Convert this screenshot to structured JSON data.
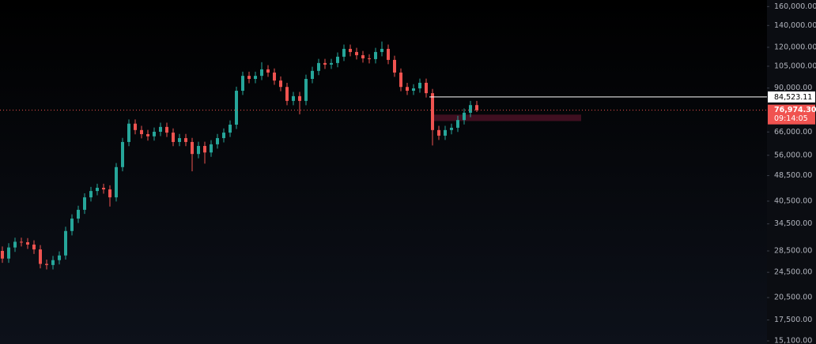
{
  "chart_data": {
    "type": "candlestick",
    "log_scale": true,
    "ylim": [
      14770,
      167600
    ],
    "yticks": [
      {
        "value": 160000,
        "label": "160,000.00"
      },
      {
        "value": 140000,
        "label": "140,000.00"
      },
      {
        "value": 120000,
        "label": "120,000.00"
      },
      {
        "value": 105000,
        "label": "105,000.00"
      },
      {
        "value": 90000,
        "label": "90,000.00"
      },
      {
        "value": 66000,
        "label": "66,000.00"
      },
      {
        "value": 56000,
        "label": "56,000.00"
      },
      {
        "value": 48500,
        "label": "48,500.00"
      },
      {
        "value": 40500,
        "label": "40,500.00"
      },
      {
        "value": 34500,
        "label": "34,500.00"
      },
      {
        "value": 28500,
        "label": "28,500.00"
      },
      {
        "value": 24500,
        "label": "24,500.00"
      },
      {
        "value": 20500,
        "label": "20,500.00"
      },
      {
        "value": 17500,
        "label": "17,500.00"
      },
      {
        "value": 15100,
        "label": "15,100.00"
      }
    ],
    "up_color": "#26a69a",
    "down_color": "#ef5350",
    "candles": [
      [
        28500,
        29400,
        26200,
        27000
      ],
      [
        27000,
        30100,
        26200,
        29200
      ],
      [
        29200,
        31300,
        28300,
        30400
      ],
      [
        30400,
        31300,
        29400,
        30300
      ],
      [
        30300,
        31200,
        28900,
        29800
      ],
      [
        29800,
        30700,
        27900,
        28800
      ],
      [
        28800,
        29700,
        25200,
        26000
      ],
      [
        26000,
        26800,
        25000,
        25800
      ],
      [
        25800,
        27500,
        25000,
        26700
      ],
      [
        26700,
        28400,
        25900,
        27600
      ],
      [
        27600,
        33800,
        26800,
        32800
      ],
      [
        32800,
        36900,
        31800,
        35800
      ],
      [
        35800,
        39200,
        34700,
        38100
      ],
      [
        38100,
        42800,
        37000,
        41600
      ],
      [
        41600,
        44800,
        40400,
        43500
      ],
      [
        43500,
        45800,
        42200,
        44500
      ],
      [
        44500,
        45800,
        42700,
        44000
      ],
      [
        44000,
        45300,
        39000,
        41600
      ],
      [
        41600,
        53000,
        40400,
        51500
      ],
      [
        51500,
        63300,
        50000,
        61500
      ],
      [
        61500,
        72100,
        59700,
        70000
      ],
      [
        70000,
        72100,
        64900,
        66900
      ],
      [
        66900,
        68900,
        63100,
        65000
      ],
      [
        65000,
        67000,
        62100,
        64000
      ],
      [
        64000,
        68100,
        62100,
        66100
      ],
      [
        66100,
        70500,
        64100,
        68400
      ],
      [
        68400,
        70500,
        63700,
        65700
      ],
      [
        65700,
        67700,
        59700,
        61500
      ],
      [
        61500,
        65100,
        59700,
        63200
      ],
      [
        63200,
        65100,
        59700,
        61500
      ],
      [
        61500,
        63300,
        50000,
        56500
      ],
      [
        56500,
        61600,
        54800,
        59800
      ],
      [
        59800,
        61600,
        52800,
        57100
      ],
      [
        57100,
        62300,
        55400,
        60500
      ],
      [
        60500,
        65100,
        58700,
        63200
      ],
      [
        63200,
        67700,
        61300,
        65700
      ],
      [
        65700,
        71600,
        63700,
        69500
      ],
      [
        69500,
        90900,
        67400,
        88300
      ],
      [
        88300,
        101000,
        85700,
        98100
      ],
      [
        98100,
        101000,
        93100,
        96000
      ],
      [
        96000,
        101000,
        93100,
        98100
      ],
      [
        98100,
        108000,
        95200,
        102700
      ],
      [
        102700,
        105800,
        97400,
        100400
      ],
      [
        100400,
        103400,
        92100,
        94900
      ],
      [
        94900,
        97700,
        88000,
        90700
      ],
      [
        90700,
        93400,
        79700,
        82200
      ],
      [
        82200,
        87600,
        79700,
        85000
      ],
      [
        85000,
        87600,
        74800,
        82200
      ],
      [
        82200,
        98900,
        79700,
        96000
      ],
      [
        96000,
        104600,
        93100,
        101600
      ],
      [
        101600,
        110600,
        98600,
        107400
      ],
      [
        107400,
        110600,
        103000,
        106200
      ],
      [
        106200,
        110600,
        103000,
        107400
      ],
      [
        107400,
        115700,
        104200,
        112300
      ],
      [
        112300,
        122300,
        108900,
        118700
      ],
      [
        118700,
        122300,
        112600,
        116100
      ],
      [
        116100,
        119600,
        110100,
        113500
      ],
      [
        113500,
        116900,
        107700,
        111000
      ],
      [
        111000,
        114300,
        107100,
        110400
      ],
      [
        110400,
        119600,
        107100,
        116100
      ],
      [
        116100,
        125000,
        112600,
        118700
      ],
      [
        118700,
        122300,
        106500,
        109800
      ],
      [
        109800,
        113100,
        97400,
        100400
      ],
      [
        100400,
        103400,
        88000,
        90700
      ],
      [
        90700,
        93400,
        85700,
        88300
      ],
      [
        88300,
        92500,
        85700,
        89800
      ],
      [
        89800,
        96200,
        87100,
        93400
      ],
      [
        93400,
        96200,
        84200,
        86800
      ],
      [
        86800,
        89400,
        60000,
        66900
      ],
      [
        66900,
        68900,
        62400,
        64300
      ],
      [
        64300,
        68900,
        62400,
        66900
      ],
      [
        66900,
        70000,
        64900,
        68000
      ],
      [
        68000,
        74000,
        66000,
        71800
      ],
      [
        71800,
        77900,
        69600,
        75600
      ],
      [
        75600,
        82200,
        73300,
        79800
      ],
      [
        79800,
        82200,
        76000,
        76974.3
      ]
    ],
    "levels": [
      {
        "value": 84523.11,
        "label": "84,523.11"
      }
    ],
    "last_price": {
      "value": 76974.3,
      "label": "76,974.30",
      "countdown": "09:14:05",
      "color": "#f05350"
    },
    "zone": {
      "low": 71300,
      "high": 74600,
      "color": "#4a1224"
    }
  }
}
